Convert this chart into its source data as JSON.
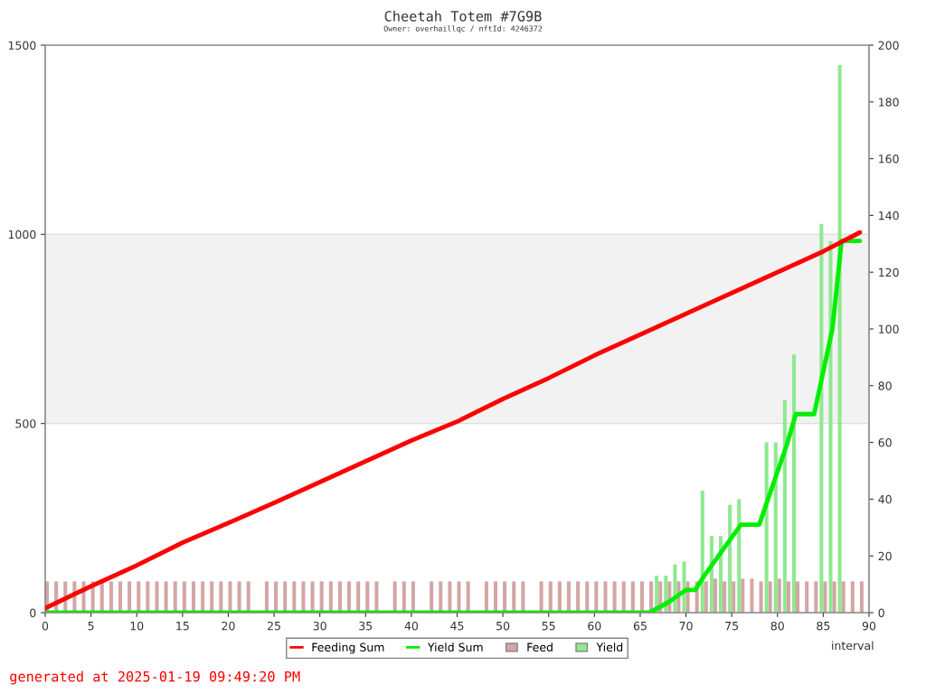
{
  "chart_data": {
    "type": "line",
    "title": "Cheetah Totem #7G9B",
    "subtitle": "Owner: overhaillqc / nftId: 4246372",
    "xlabel": "interval",
    "annotations": [
      "generated at 2025-01-19 09:49:20 PM"
    ],
    "xlim": [
      0,
      90
    ],
    "xticks": [
      0,
      5,
      10,
      15,
      20,
      25,
      30,
      35,
      40,
      45,
      50,
      55,
      60,
      65,
      70,
      75,
      80,
      85,
      90
    ],
    "ylim": [
      0,
      1500
    ],
    "yticks": [
      0,
      500,
      1000,
      1500
    ],
    "y2lim": [
      0,
      200
    ],
    "y2ticks": [
      0,
      20,
      40,
      60,
      80,
      100,
      120,
      140,
      160,
      180,
      200
    ],
    "grid": "y",
    "legend": "bottom",
    "bands": [
      {
        "axis": "y",
        "from": 500,
        "to": 1000,
        "color": "#f2f2f2"
      }
    ],
    "series": [
      {
        "name": "Feed",
        "type": "bar",
        "axis": "y2",
        "color": "#d4a5a5",
        "x": [
          0,
          1,
          2,
          3,
          4,
          5,
          6,
          7,
          8,
          9,
          10,
          11,
          12,
          13,
          14,
          15,
          16,
          17,
          18,
          19,
          20,
          21,
          22,
          24,
          25,
          26,
          27,
          28,
          29,
          30,
          31,
          32,
          33,
          34,
          35,
          36,
          38,
          39,
          40,
          42,
          43,
          44,
          45,
          46,
          48,
          49,
          50,
          51,
          52,
          54,
          55,
          56,
          57,
          58,
          59,
          60,
          61,
          62,
          63,
          64,
          65,
          66,
          67,
          68,
          69,
          70,
          71,
          72,
          73,
          74,
          75,
          76,
          77,
          78,
          79,
          80,
          81,
          82,
          83,
          84,
          85,
          86,
          87,
          88,
          89
        ],
        "values": [
          11,
          11,
          11,
          11,
          11,
          11,
          11,
          11,
          11,
          11,
          11,
          11,
          11,
          11,
          11,
          11,
          11,
          11,
          11,
          11,
          11,
          11,
          11,
          11,
          11,
          11,
          11,
          11,
          11,
          11,
          11,
          11,
          11,
          11,
          11,
          11,
          11,
          11,
          11,
          11,
          11,
          11,
          11,
          11,
          11,
          11,
          11,
          11,
          11,
          11,
          11,
          11,
          11,
          11,
          11,
          11,
          11,
          11,
          11,
          11,
          11,
          11,
          11,
          11,
          11,
          11,
          11,
          11,
          12,
          11,
          11,
          12,
          12,
          11,
          11,
          12,
          11,
          11,
          11,
          11,
          11,
          11,
          11,
          11,
          11
        ]
      },
      {
        "name": "Yield",
        "type": "bar",
        "axis": "y2",
        "color": "#90e890",
        "x": [
          67,
          68,
          69,
          70,
          72,
          73,
          74,
          75,
          76,
          79,
          80,
          81,
          82,
          85,
          86,
          87
        ],
        "values": [
          13,
          13,
          17,
          18,
          43,
          27,
          27,
          38,
          40,
          60,
          60,
          75,
          91,
          137,
          131,
          193
        ]
      },
      {
        "name": "Feeding Sum",
        "axis": "y",
        "color": "#ff0000",
        "x": [
          0,
          5,
          10,
          15,
          20,
          25,
          30,
          35,
          40,
          45,
          50,
          55,
          60,
          65,
          70,
          75,
          80,
          85,
          89
        ],
        "values": [
          12,
          70,
          125,
          185,
          237,
          290,
          345,
          400,
          455,
          505,
          565,
          620,
          680,
          735,
          790,
          845,
          900,
          955,
          1005
        ]
      },
      {
        "name": "Yield Sum",
        "axis": "y2",
        "color": "#00ee00",
        "x": [
          0,
          66,
          68,
          70,
          71,
          72,
          74,
          76,
          78,
          81,
          82,
          84,
          86,
          87,
          89
        ],
        "values": [
          0,
          0,
          3.5,
          8,
          8,
          13,
          22,
          31,
          31,
          59,
          70,
          70,
          100,
          131,
          131
        ]
      }
    ]
  }
}
